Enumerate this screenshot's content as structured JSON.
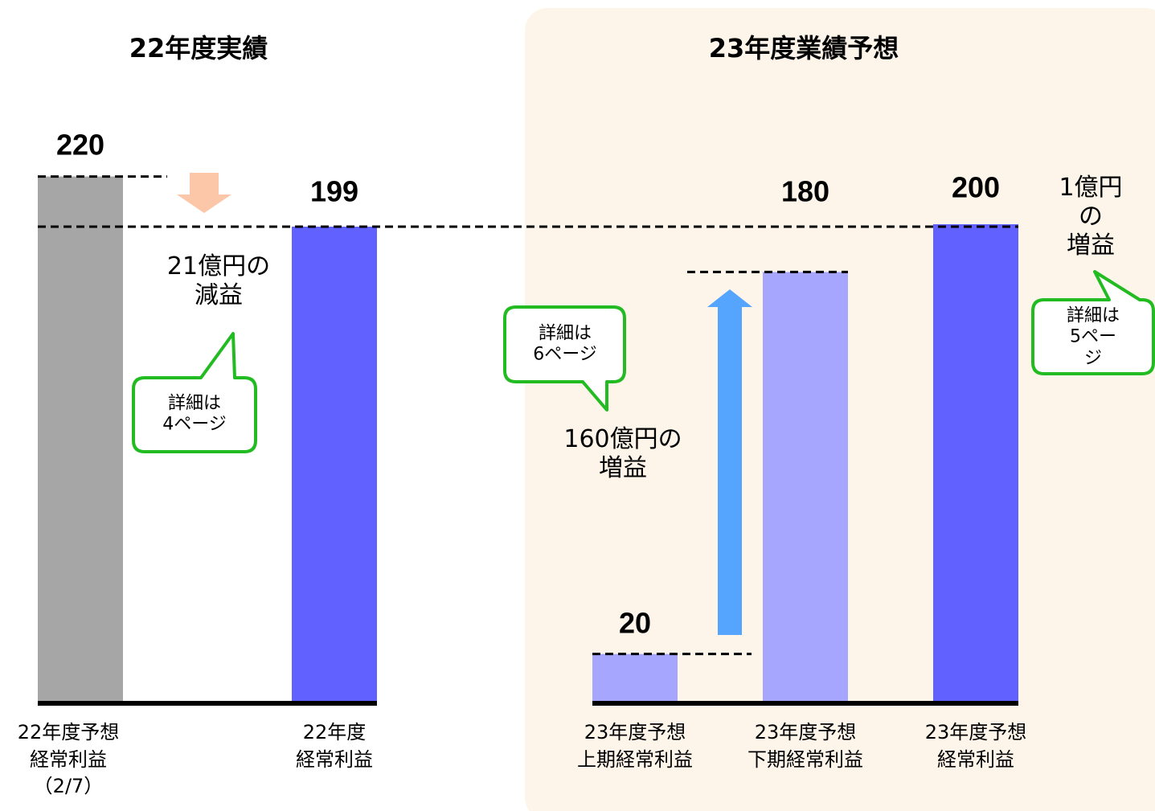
{
  "chart_data": {
    "type": "bar",
    "titles": [
      "22年度実績",
      "23年度業績予想"
    ],
    "categories": [
      "22年度予想\n経常利益\n（2/7）",
      "22年度\n経常利益",
      "23年度予想\n上期経常利益",
      "23年度予想\n下期経常利益",
      "23年度予想\n経常利益"
    ],
    "values": [
      220,
      199,
      20,
      180,
      200
    ],
    "colors": [
      "#a6a6a6",
      "#6161ff",
      "#a6a6ff",
      "#a6a6ff",
      "#6161ff"
    ],
    "annotations": [
      "21億円の\n減益",
      "160億円の\n増益",
      "1億円の\n増益"
    ],
    "callouts": [
      "詳細は\n4ページ",
      "詳細は\n6ページ",
      "詳細は\n5ページ"
    ]
  }
}
